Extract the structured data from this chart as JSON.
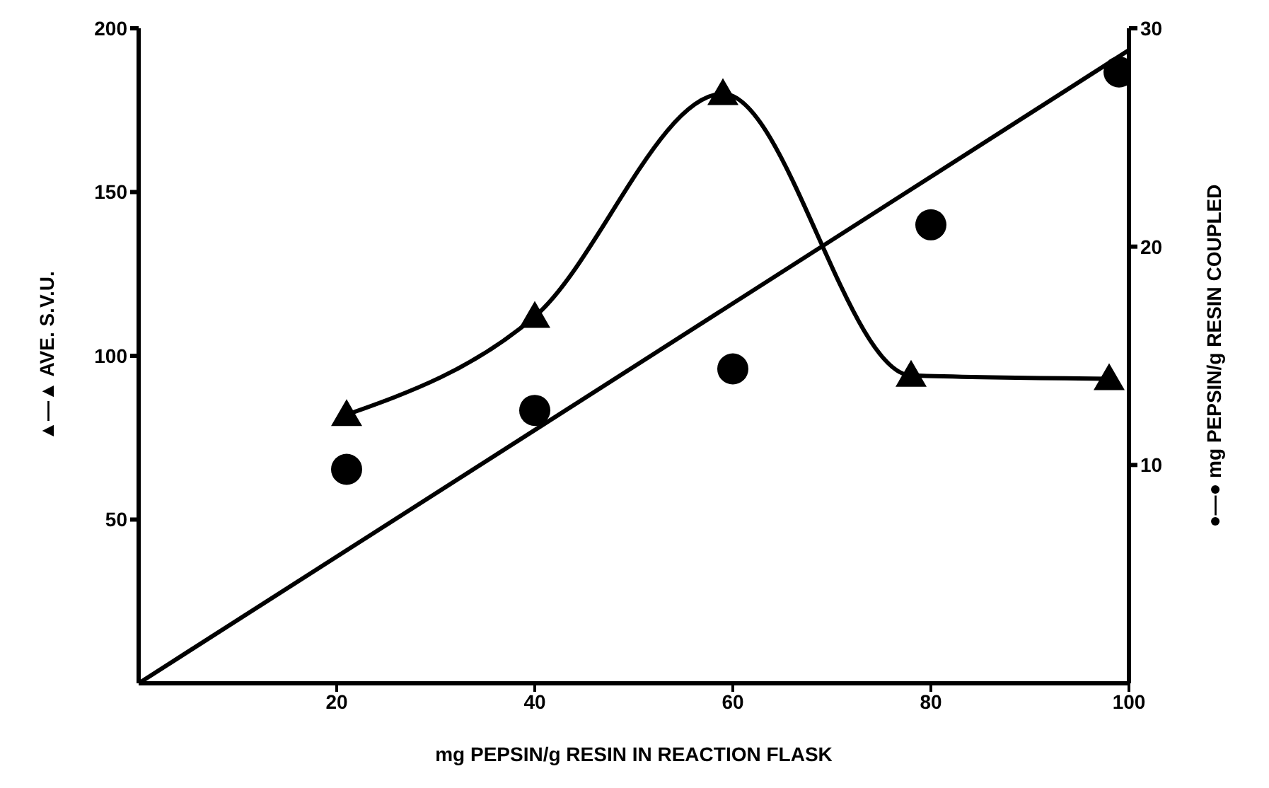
{
  "chart_data": {
    "type": "line",
    "xlabel": "mg PEPSIN/g RESIN IN REACTION FLASK",
    "ylabel": "▲—▲ AVE. S.V.U.",
    "y2label": "●—● mg PEPSIN/g RESIN COUPLED",
    "xlim": [
      0,
      100
    ],
    "xticks": [
      20,
      40,
      60,
      80,
      100
    ],
    "ylim": [
      0,
      200
    ],
    "yticks": [
      50,
      100,
      150,
      200
    ],
    "y2lim": [
      0,
      30
    ],
    "y2ticks": [
      10,
      20,
      30
    ],
    "series": [
      {
        "color": "#000000",
        "marker": "triangle",
        "x": [
          21,
          40,
          59,
          78,
          98
        ],
        "values": [
          82,
          112,
          180,
          94,
          93
        ]
      },
      {
        "type": "scatter",
        "axis": "y2",
        "color": "#000000",
        "marker": "circle",
        "x": [
          21,
          40,
          60,
          80,
          99
        ],
        "values": [
          9.8,
          12.5,
          14.4,
          21,
          28
        ]
      },
      {
        "type": "line",
        "axis": "y2",
        "color": "#000000",
        "marker": "none",
        "x": [
          0,
          100
        ],
        "values": [
          0,
          29
        ]
      }
    ]
  }
}
